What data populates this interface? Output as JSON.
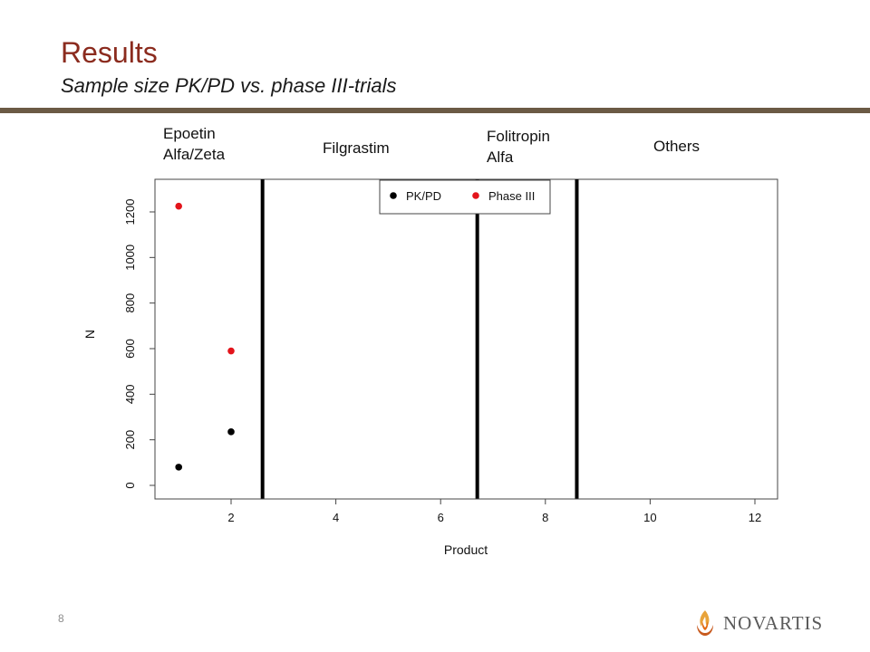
{
  "header": {
    "title": "Results",
    "subtitle": "Sample size PK/PD vs. phase III-trials"
  },
  "group_labels": [
    {
      "text": "Epoetin\nAlfa/Zeta"
    },
    {
      "text": "Filgrastim"
    },
    {
      "text": "Folitropin\nAlfa"
    },
    {
      "text": "Others"
    }
  ],
  "chart_data": {
    "type": "scatter",
    "xlabel": "Product",
    "ylabel": "N",
    "xlim": [
      0.5,
      12.5
    ],
    "ylim": [
      -40,
      1290
    ],
    "x_ticks": [
      2,
      4,
      6,
      8,
      10,
      12
    ],
    "y_ticks": [
      0,
      200,
      400,
      600,
      800,
      1000,
      1200
    ],
    "grid": false,
    "legend_position": "top-center",
    "series": [
      {
        "name": "PK/PD",
        "color": "#000000",
        "x": [
          1,
          2
        ],
        "y": [
          80,
          235
        ]
      },
      {
        "name": "Phase III",
        "color": "#e3141b",
        "x": [
          1,
          2
        ],
        "y": [
          1225,
          590
        ]
      }
    ],
    "separators_x": [
      2.6,
      6.7,
      8.6
    ]
  },
  "footer": {
    "page_number": "8",
    "logo_text": "NOVARTIS",
    "logo_icon": "flame-logo-icon"
  }
}
